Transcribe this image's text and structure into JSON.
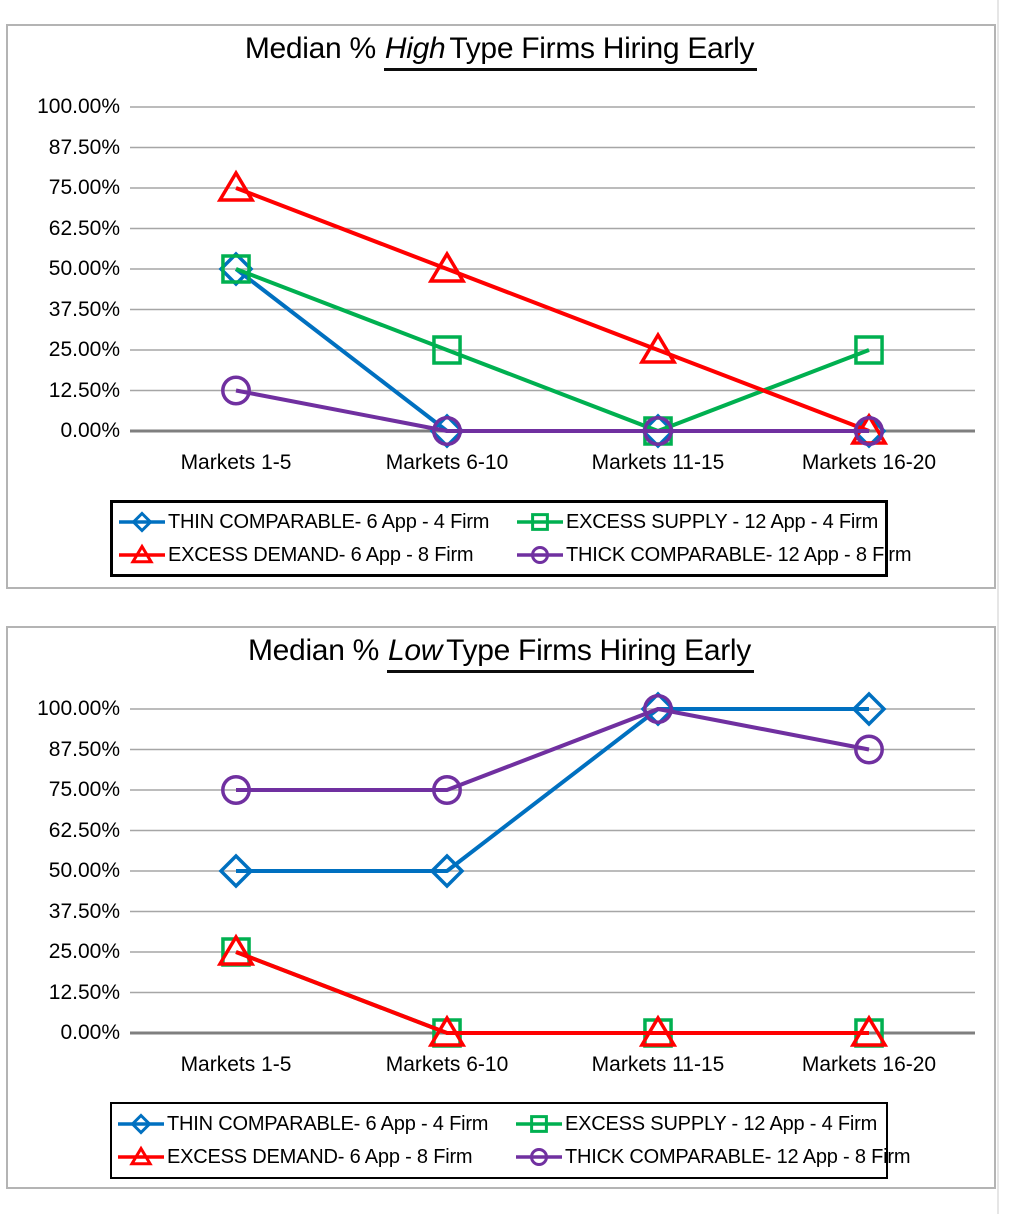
{
  "chart_data": [
    {
      "type": "line",
      "title": "Median % High Type Firms Hiring Early",
      "title_prefix": "Median % ",
      "title_emphasis": "High",
      "title_rest": "Type Firms Hiring Early",
      "categories": [
        "Markets 1-5",
        "Markets 6-10",
        "Markets 11-15",
        "Markets 16-20"
      ],
      "y_tick_labels": [
        "100.00%",
        "87.50%",
        "75.00%",
        "62.50%",
        "50.00%",
        "37.50%",
        "25.00%",
        "12.50%",
        "0.00%"
      ],
      "ylim": [
        0,
        100
      ],
      "y_tick_step_percent": 12.5,
      "grid": true,
      "legend_position": "bottom",
      "gridline_color": "#a6a6a6",
      "axis_line_color": "#7f7f7f",
      "series": [
        {
          "name": "THIN COMPARABLE- 6 App - 4 Firm",
          "color": "#0070C0",
          "marker": "diamond",
          "values": [
            50,
            0,
            0,
            0
          ]
        },
        {
          "name": "EXCESS SUPPLY - 12 App - 4 Firm",
          "color": "#00B050",
          "marker": "square",
          "values": [
            50,
            25,
            0,
            25
          ]
        },
        {
          "name": "EXCESS DEMAND- 6 App - 8 Firm",
          "color": "#FF0000",
          "marker": "triangle",
          "values": [
            75,
            50,
            25,
            0
          ]
        },
        {
          "name": "THICK COMPARABLE- 12 App - 8 Firm",
          "color": "#7030A0",
          "marker": "circle",
          "values": [
            12.5,
            0,
            0,
            0
          ]
        }
      ]
    },
    {
      "type": "line",
      "title": "Median % Low Type Firms Hiring Early",
      "title_prefix": "Median % ",
      "title_emphasis": "Low",
      "title_rest": "Type Firms Hiring Early",
      "categories": [
        "Markets 1-5",
        "Markets 6-10",
        "Markets 11-15",
        "Markets 16-20"
      ],
      "y_tick_labels": [
        "100.00%",
        "87.50%",
        "75.00%",
        "62.50%",
        "50.00%",
        "37.50%",
        "25.00%",
        "12.50%",
        "0.00%"
      ],
      "ylim": [
        0,
        100
      ],
      "y_tick_step_percent": 12.5,
      "grid": true,
      "legend_position": "bottom",
      "gridline_color": "#a6a6a6",
      "axis_line_color": "#7f7f7f",
      "series": [
        {
          "name": "THIN COMPARABLE- 6 App - 4 Firm",
          "color": "#0070C0",
          "marker": "diamond",
          "values": [
            50,
            50,
            100,
            100
          ]
        },
        {
          "name": "EXCESS SUPPLY - 12 App - 4 Firm",
          "color": "#00B050",
          "marker": "square",
          "values": [
            25,
            0,
            0,
            0
          ]
        },
        {
          "name": "EXCESS DEMAND- 6 App - 8 Firm",
          "color": "#FF0000",
          "marker": "triangle",
          "values": [
            25,
            0,
            0,
            0
          ]
        },
        {
          "name": "THICK COMPARABLE- 12 App - 8 Firm",
          "color": "#7030A0",
          "marker": "circle",
          "values": [
            75,
            75,
            100,
            87.5
          ]
        }
      ]
    }
  ]
}
